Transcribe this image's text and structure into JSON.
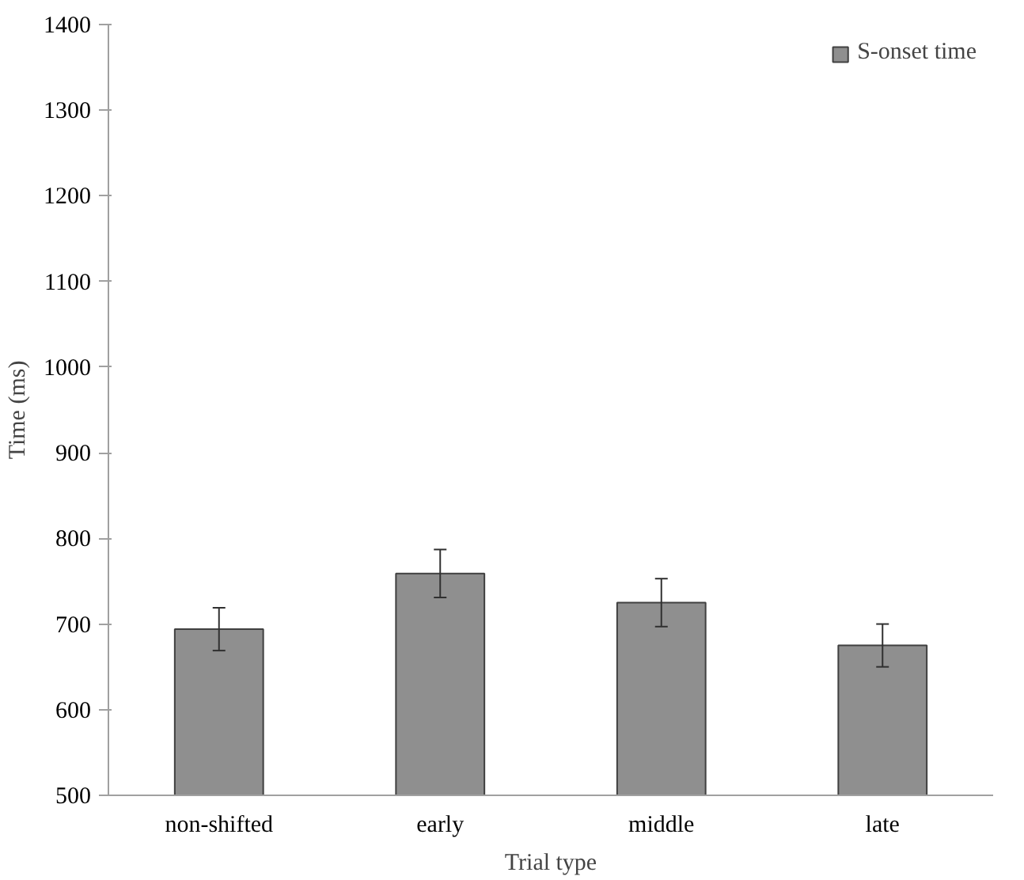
{
  "chart_data": {
    "type": "bar",
    "xlabel": "Trial type",
    "ylabel": "Time (ms)",
    "categories": [
      "non-shifted",
      "early",
      "middle",
      "late"
    ],
    "series": [
      {
        "name": "S-onset time",
        "color": "#8f8f8f",
        "values": [
          694,
          759,
          725,
          675
        ],
        "errors": [
          25,
          28,
          28,
          25
        ]
      }
    ],
    "ylim": [
      500,
      1400
    ],
    "yticks": [
      500,
      600,
      700,
      800,
      900,
      1000,
      1100,
      1200,
      1300,
      1400
    ],
    "grid": false,
    "legend": "top right"
  }
}
